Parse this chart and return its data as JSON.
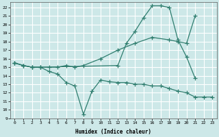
{
  "xlabel": "Humidex (Indice chaleur)",
  "bg_color": "#cde8e8",
  "grid_color": "#ffffff",
  "line_color": "#2e7d6e",
  "xlim": [
    -0.5,
    23.5
  ],
  "ylim": [
    9,
    22.6
  ],
  "xticks": [
    0,
    1,
    2,
    3,
    4,
    5,
    6,
    7,
    8,
    9,
    10,
    11,
    12,
    13,
    14,
    15,
    16,
    17,
    18,
    19,
    20,
    21,
    22,
    23
  ],
  "yticks": [
    9,
    10,
    11,
    12,
    13,
    14,
    15,
    16,
    17,
    18,
    19,
    20,
    21,
    22
  ],
  "line_upper_x": [
    0,
    1,
    2,
    3,
    12,
    13,
    14,
    15,
    16,
    17,
    18,
    19,
    20,
    21
  ],
  "line_upper_y": [
    15.5,
    15.2,
    15.0,
    15.0,
    15.2,
    17.8,
    19.2,
    20.8,
    22.2,
    22.2,
    22.0,
    18.2,
    16.2,
    13.7
  ],
  "line_mid_x": [
    0,
    1,
    2,
    3,
    4,
    5,
    6,
    7,
    8,
    10,
    12,
    14,
    16,
    18,
    19,
    20,
    21
  ],
  "line_mid_y": [
    15.5,
    15.2,
    15.0,
    15.0,
    15.0,
    15.0,
    15.2,
    15.0,
    15.2,
    16.0,
    17.0,
    17.8,
    18.5,
    18.2,
    18.0,
    17.8,
    21.0
  ],
  "line_lower_x": [
    0,
    1,
    2,
    3,
    4,
    5,
    6,
    7,
    8,
    9,
    10,
    11,
    12,
    13,
    14,
    15,
    16,
    17,
    18,
    19,
    20,
    21,
    22,
    23
  ],
  "line_lower_y": [
    15.5,
    15.2,
    15.0,
    15.0,
    14.5,
    14.2,
    13.2,
    12.8,
    9.5,
    12.2,
    13.5,
    13.3,
    13.2,
    13.2,
    13.0,
    13.0,
    12.8,
    12.8,
    12.5,
    12.2,
    12.0,
    11.5,
    11.5,
    11.5
  ]
}
